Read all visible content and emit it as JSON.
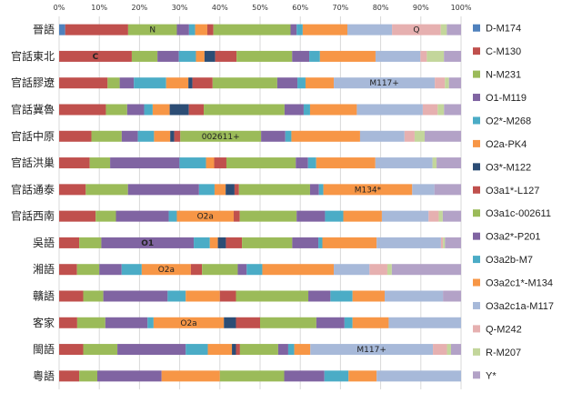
{
  "chart_data": {
    "type": "bar",
    "orientation": "horizontal",
    "stacked": "percent",
    "xlim": [
      0,
      100
    ],
    "x_ticks": [
      "0%",
      "10%",
      "20%",
      "30%",
      "40%",
      "50%",
      "60%",
      "70%",
      "80%",
      "90%",
      "100%"
    ],
    "grid": true,
    "legend_position": "right",
    "categories": [
      "晉語",
      "官話東北",
      "官話膠遼",
      "官話冀魯",
      "官話中原",
      "官話洪巢",
      "官話通泰",
      "官話西南",
      "吳語",
      "湘語",
      "贛語",
      "客家",
      "閩語",
      "粵語"
    ],
    "series": [
      {
        "name": "D-M174",
        "color": "#4F81BD",
        "values": [
          1.5,
          0,
          0,
          0,
          0,
          0,
          0,
          0,
          0,
          0,
          0,
          0,
          0,
          0
        ]
      },
      {
        "name": "C-M130",
        "color": "#C0504D",
        "values": [
          15.5,
          17,
          12,
          11,
          8,
          7.5,
          6,
          9,
          5,
          4,
          6,
          4.5,
          6,
          5
        ]
      },
      {
        "name": "N-M231",
        "color": "#9BBB59",
        "values": [
          12,
          6,
          3,
          5,
          7.5,
          5,
          9.5,
          5,
          5.5,
          5,
          5,
          7,
          8.5,
          4.5
        ]
      },
      {
        "name": "O1-M119",
        "color": "#8064A2",
        "values": [
          3,
          5,
          3.5,
          4,
          4,
          17,
          16,
          13,
          23,
          5,
          16,
          10.5,
          17,
          16
        ]
      },
      {
        "name": "O2*-M268",
        "color": "#4BACC6",
        "values": [
          1.5,
          4,
          8,
          2,
          4,
          6.5,
          3.5,
          2,
          4,
          4.5,
          4.5,
          1.5,
          5.5,
          0
        ]
      },
      {
        "name": "O2a-PK4",
        "color": "#F79646",
        "values": [
          3,
          2,
          5.5,
          4,
          4,
          2,
          2.5,
          14,
          2,
          11,
          8.5,
          17.5,
          6,
          14.5
        ]
      },
      {
        "name": "O3*-M122",
        "color": "#2C4D75",
        "values": [
          0,
          2.5,
          1,
          4.5,
          1,
          0,
          2,
          0,
          2,
          0,
          0,
          3,
          1,
          0
        ]
      },
      {
        "name": "O3a1*-L127",
        "color": "#C0504D",
        "values": [
          1.5,
          5,
          5,
          3.5,
          1.5,
          3,
          1,
          1.5,
          4,
          2.5,
          4,
          6,
          1,
          0
        ]
      },
      {
        "name": "O3a1c-002611",
        "color": "#9BBB59",
        "values": [
          19,
          13,
          16,
          19,
          20,
          17,
          16,
          14,
          12.5,
          8,
          18,
          14,
          9.5,
          16
        ]
      },
      {
        "name": "O3a2*-P201",
        "color": "#8064A2",
        "values": [
          1.5,
          4,
          5,
          4.5,
          6,
          3,
          2,
          7,
          6.5,
          2,
          5.5,
          7,
          2.5,
          10
        ]
      },
      {
        "name": "O3a2b-M7",
        "color": "#4BACC6",
        "values": [
          1.5,
          2.5,
          2,
          1.5,
          1.5,
          2,
          1,
          4.5,
          1,
          3.5,
          5.5,
          2,
          1.5,
          6
        ]
      },
      {
        "name": "O3a2c1*-M134",
        "color": "#F79646",
        "values": [
          11,
          13,
          7,
          11,
          17,
          14.5,
          20,
          9.5,
          13.5,
          16,
          8,
          9,
          4,
          7
        ]
      },
      {
        "name": "O3a2c1a-M117",
        "color": "#A7B9D9",
        "values": [
          11,
          10.5,
          25,
          15.5,
          11,
          14,
          5,
          11.5,
          16,
          8,
          14.5,
          18,
          30.5,
          21
        ]
      },
      {
        "name": "Q-M242",
        "color": "#E6B0B0",
        "values": [
          12,
          1.5,
          2.5,
          3.5,
          2.5,
          0,
          0,
          2.5,
          0.5,
          4,
          0,
          0,
          3.5,
          0
        ]
      },
      {
        "name": "R-M207",
        "color": "#C3D69B",
        "values": [
          1.5,
          4,
          1,
          1.5,
          2.5,
          1,
          0,
          1,
          0.5,
          1,
          0,
          0,
          1,
          0
        ]
      },
      {
        "name": "Y*",
        "color": "#B3A2C7",
        "values": [
          3.5,
          4,
          3,
          4,
          9,
          6,
          6,
          4.5,
          4,
          15.5,
          4.5,
          0,
          2.5,
          0
        ]
      }
    ],
    "annotations": [
      {
        "category": "晉語",
        "series": "N-M231",
        "text": "N",
        "color": "#222222"
      },
      {
        "category": "晉語",
        "series": "Q-M242",
        "text": "Q",
        "color": "#222222"
      },
      {
        "category": "官話東北",
        "series": "C-M130",
        "text": "C",
        "color": "#FFD700"
      },
      {
        "category": "官話膠遼",
        "series": "O3a2c1a-M117",
        "text": "M117+",
        "color": "#222222"
      },
      {
        "category": "官話中原",
        "series": "O3a1c-002611",
        "text": "002611+",
        "color": "#222222"
      },
      {
        "category": "官話通泰",
        "series": "O3a2c1*-M134",
        "text": "M134*",
        "color": "#222222"
      },
      {
        "category": "官話西南",
        "series": "O2a-PK4",
        "text": "O2a",
        "color": "#222222"
      },
      {
        "category": "吳語",
        "series": "O1-M119",
        "text": "O1",
        "color": "#FFD700"
      },
      {
        "category": "湘語",
        "series": "O2a-PK4",
        "text": "O2a",
        "color": "#222222"
      },
      {
        "category": "客家",
        "series": "O2a-PK4",
        "text": "O2a",
        "color": "#222222"
      },
      {
        "category": "閩語",
        "series": "O3a2c1a-M117",
        "text": "M117+",
        "color": "#222222"
      }
    ]
  }
}
